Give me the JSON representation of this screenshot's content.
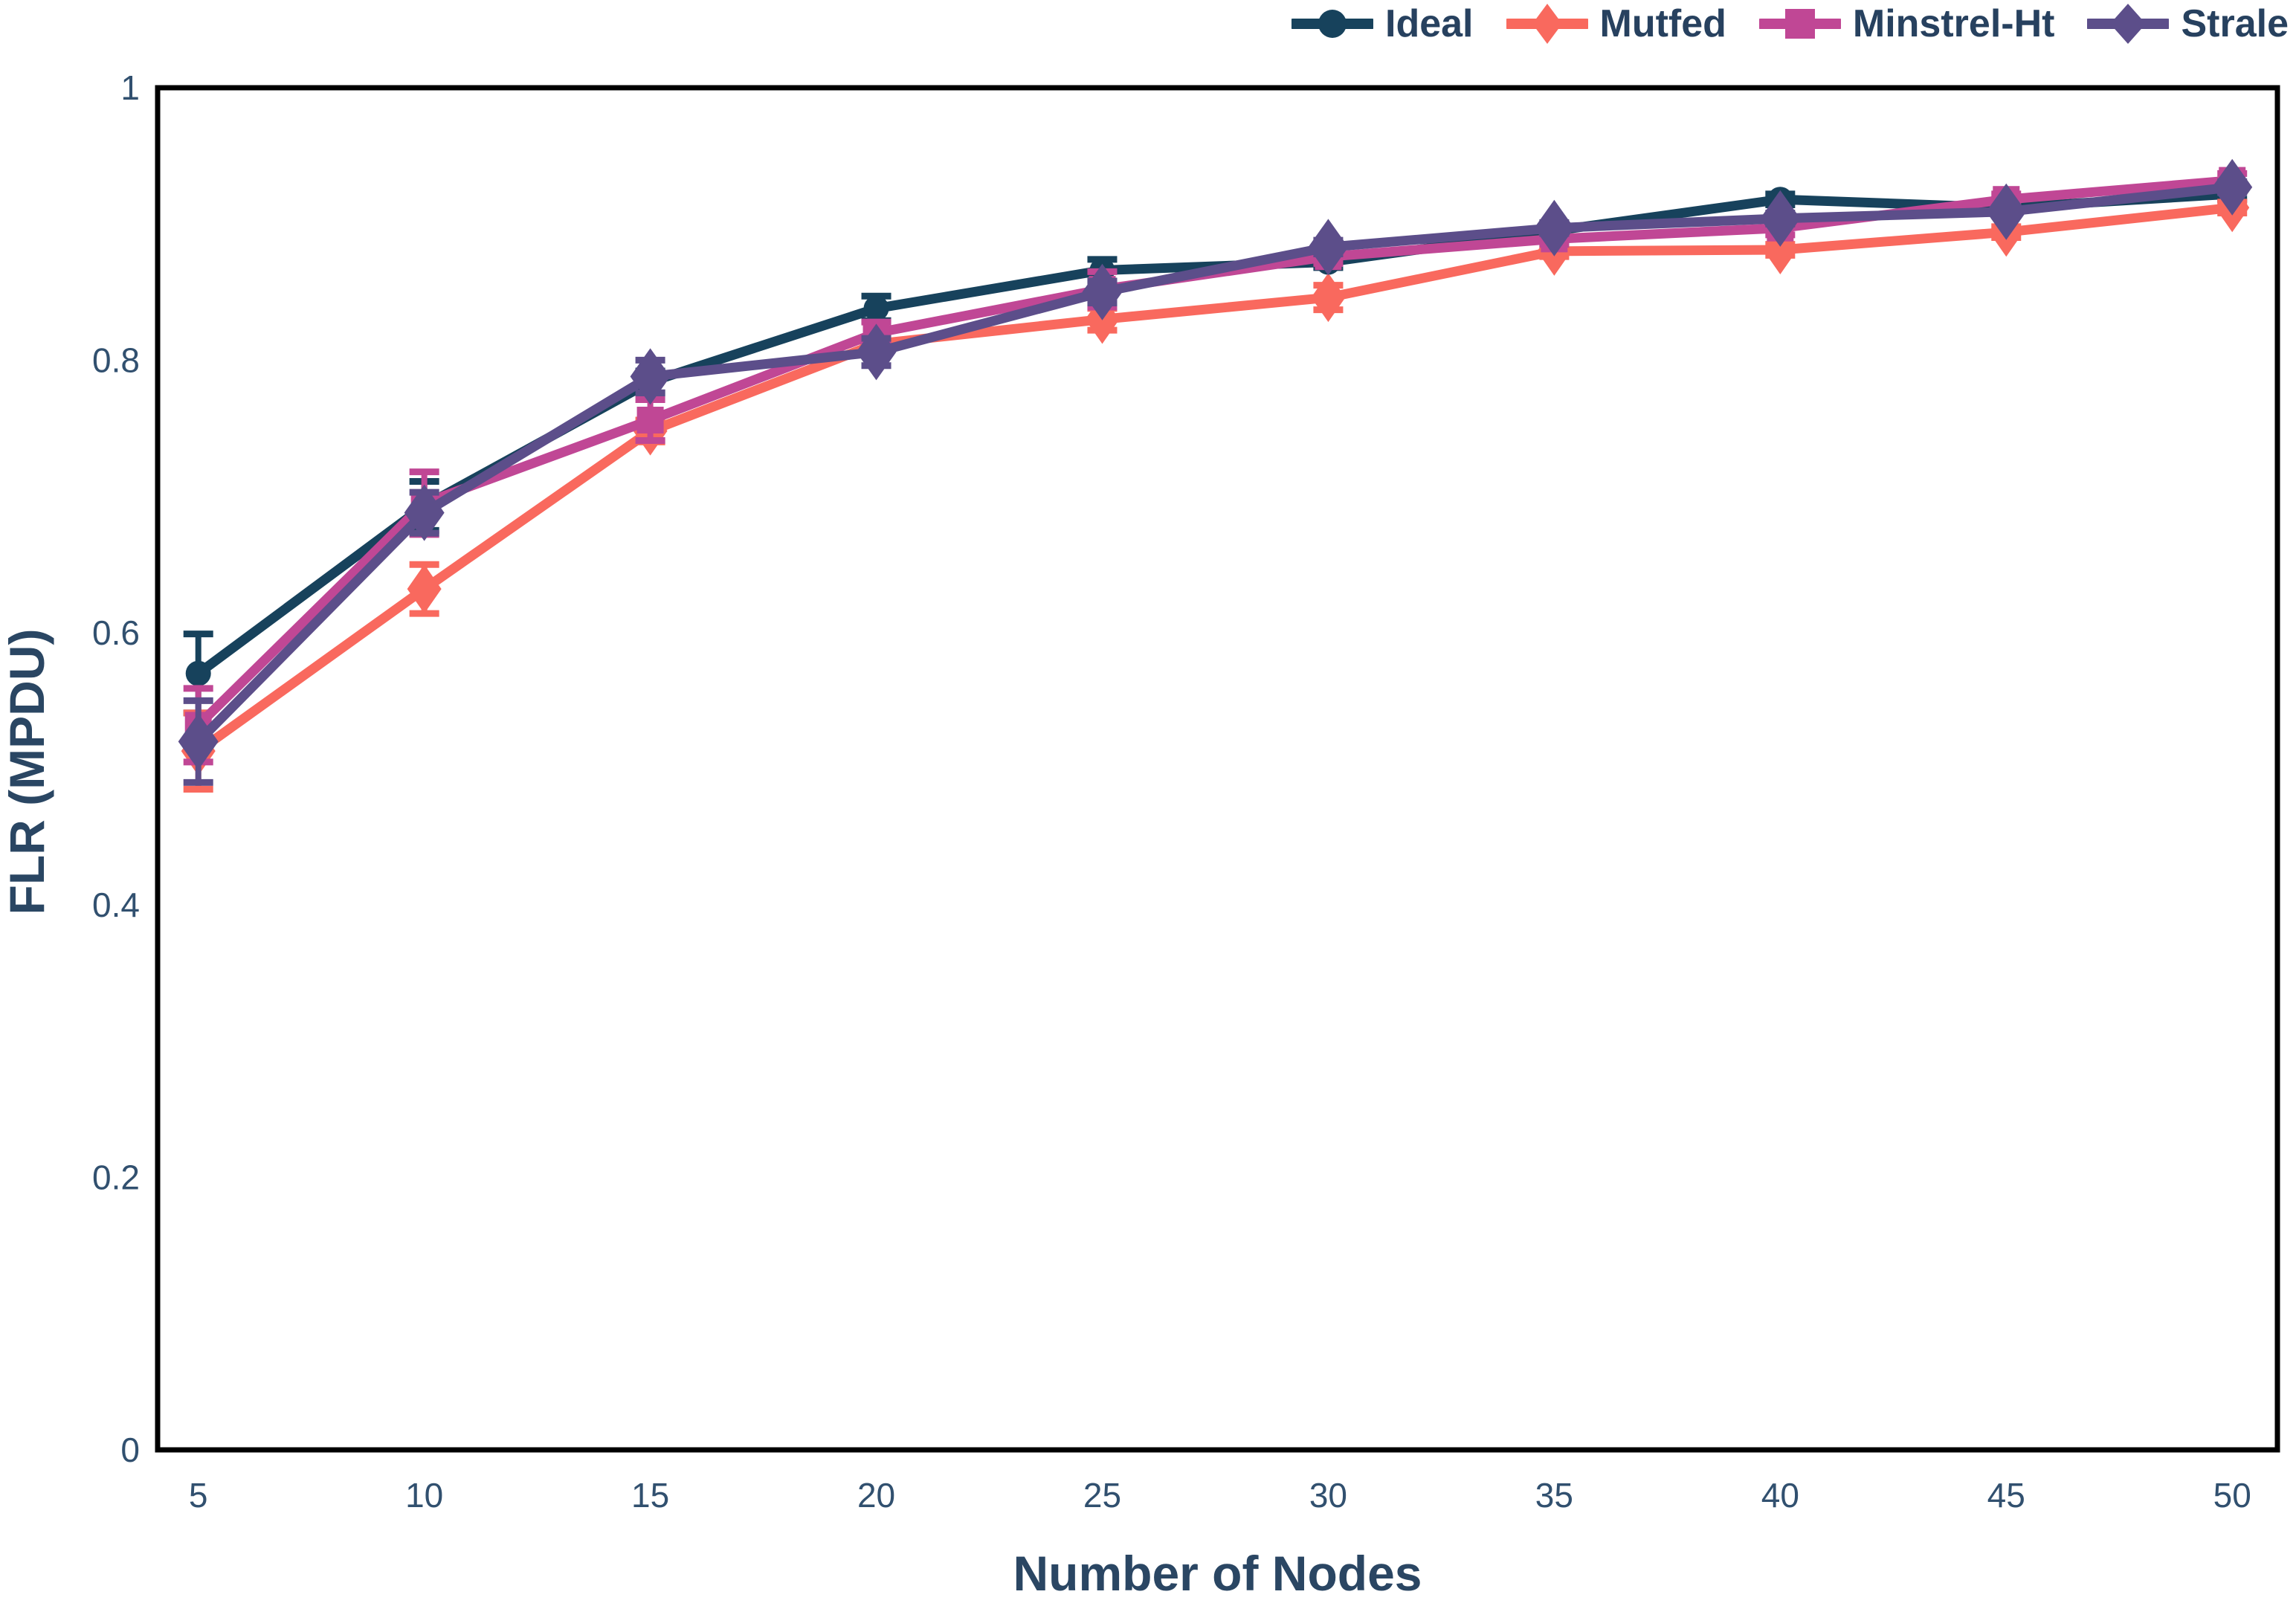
{
  "figure": {
    "background_color": "#ffffff",
    "spine_color": "#000000",
    "tick_label_color": "#31506f",
    "axis_label_color": "#2a4663",
    "legend_text_color": "#27415f"
  },
  "chart_data": {
    "type": "line",
    "title": "",
    "xlabel": "Number of Nodes",
    "ylabel": "FLR (MPDU)",
    "x": [
      5,
      10,
      15,
      20,
      25,
      30,
      35,
      40,
      45,
      50
    ],
    "xtick_labels": [
      "5",
      "10",
      "15",
      "20",
      "25",
      "30",
      "35",
      "40",
      "45",
      "50"
    ],
    "ytick_values": [
      0,
      0.2,
      0.4,
      0.6,
      0.8,
      1
    ],
    "ytick_labels": [
      "0",
      "0.2",
      "0.4",
      "0.6",
      "0.8",
      "1"
    ],
    "xlim": [
      4.1,
      51.0
    ],
    "ylim": [
      0,
      1
    ],
    "grid": false,
    "legend_position": "top-right",
    "error_bars": true,
    "series": [
      {
        "name": "Ideal",
        "color": "#17425c",
        "marker": "circle",
        "values": [
          0.57,
          0.693,
          0.784,
          0.838,
          0.866,
          0.872,
          0.895,
          0.918,
          0.912,
          0.922
        ],
        "errors": [
          0.029,
          0.018,
          0.008,
          0.009,
          0.008,
          0.004,
          0.003,
          0.004,
          0.003,
          0.004
        ]
      },
      {
        "name": "Mutfed",
        "color": "#f9695e",
        "marker": "thin-diamond",
        "values": [
          0.513,
          0.632,
          0.748,
          0.812,
          0.83,
          0.846,
          0.88,
          0.881,
          0.894,
          0.912
        ],
        "errors": [
          0.028,
          0.018,
          0.008,
          0.005,
          0.008,
          0.009,
          0.004,
          0.004,
          0.004,
          0.004
        ]
      },
      {
        "name": "Minstrel-Ht",
        "color": "#c04795",
        "marker": "square",
        "values": [
          0.532,
          0.695,
          0.756,
          0.82,
          0.852,
          0.876,
          0.889,
          0.897,
          0.918,
          0.932
        ],
        "errors": [
          0.027,
          0.023,
          0.015,
          0.008,
          0.013,
          0.005,
          0.004,
          0.005,
          0.004,
          0.005
        ]
      },
      {
        "name": "Strale",
        "color": "#5c4e8a",
        "marker": "diamond",
        "values": [
          0.52,
          0.688,
          0.788,
          0.806,
          0.85,
          0.883,
          0.897,
          0.904,
          0.909,
          0.927
        ],
        "errors": [
          0.03,
          0.015,
          0.012,
          0.01,
          0.008,
          0.005,
          0.004,
          0.004,
          0.003,
          0.004
        ]
      }
    ]
  }
}
